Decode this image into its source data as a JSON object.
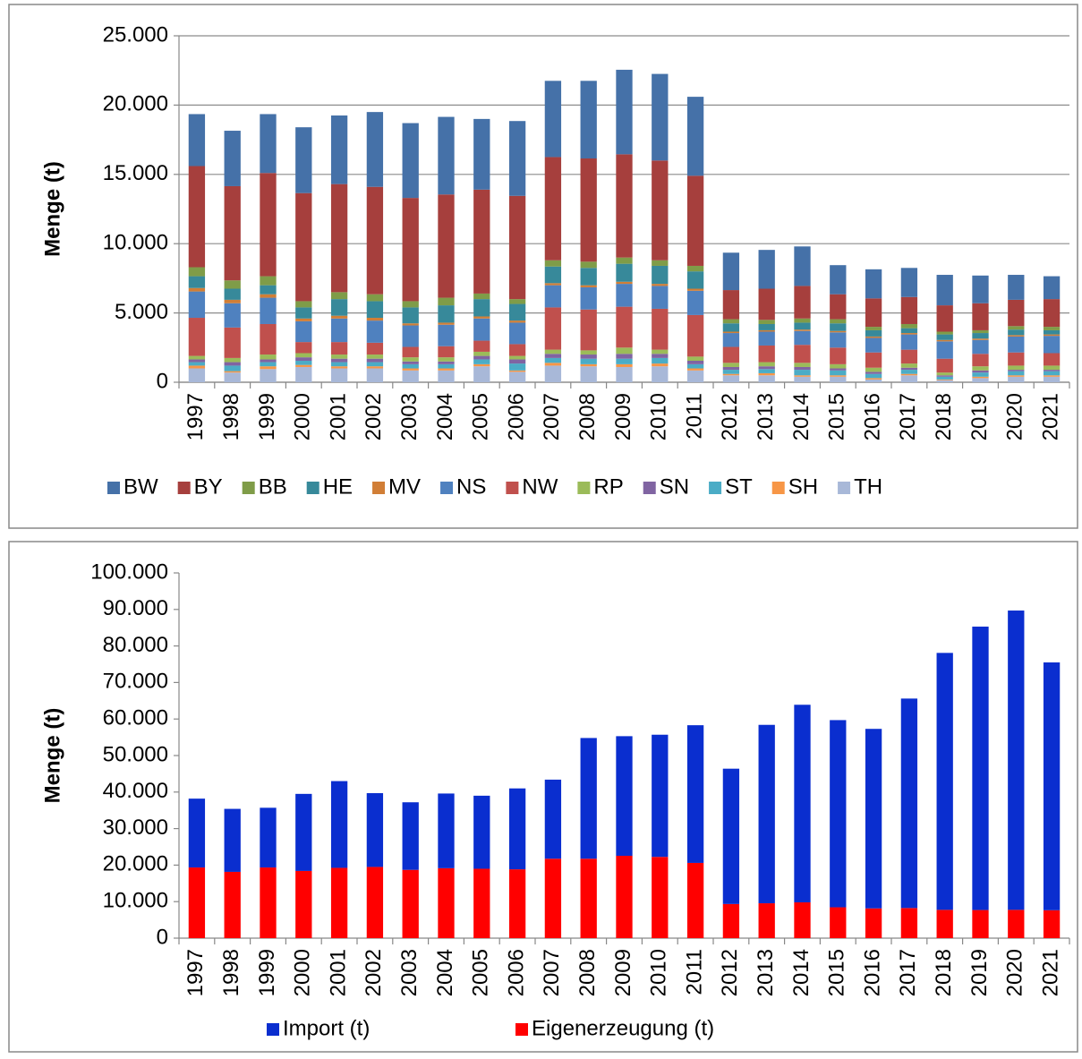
{
  "chart_data": [
    {
      "type": "stacked-bar",
      "y_label": "Menge (t)",
      "categories": [
        "1997",
        "1998",
        "1999",
        "2000",
        "2001",
        "2002",
        "2003",
        "2004",
        "2005",
        "2006",
        "2007",
        "2008",
        "2009",
        "2010",
        "2011",
        "2012",
        "2013",
        "2014",
        "2015",
        "2016",
        "2017",
        "2018",
        "2019",
        "2020",
        "2021"
      ],
      "ylim": [
        0,
        25000
      ],
      "yticks": [
        0,
        {
          "value": 5000,
          "label": "5.000"
        },
        {
          "value": 10000,
          "label": "10.000"
        },
        {
          "value": 15000,
          "label": "15.000"
        },
        {
          "value": 20000,
          "label": "20.000"
        },
        {
          "value": 25000,
          "label": "25.000"
        }
      ],
      "grid": true,
      "legend": "bottom",
      "series": [
        {
          "name": "BW",
          "color": "#4571a8",
          "values": [
            3750,
            4000,
            4250,
            4750,
            4950,
            5400,
            5400,
            5600,
            5100,
            5400,
            5500,
            5600,
            6100,
            6250,
            5700,
            2700,
            2800,
            2850,
            2100,
            2100,
            2100,
            2200,
            2000,
            1800,
            1650
          ]
        },
        {
          "name": "BY",
          "color": "#a63f3d",
          "values": [
            7300,
            6800,
            7450,
            7800,
            7800,
            7750,
            7450,
            7450,
            7500,
            7450,
            7450,
            7450,
            7450,
            7200,
            6500,
            2100,
            2250,
            2350,
            1800,
            2050,
            1950,
            1900,
            1950,
            1900,
            2000
          ]
        },
        {
          "name": "BB",
          "color": "#7f9c48",
          "values": [
            650,
            600,
            650,
            450,
            500,
            500,
            450,
            550,
            400,
            350,
            450,
            450,
            450,
            400,
            400,
            300,
            300,
            300,
            300,
            250,
            300,
            200,
            200,
            250,
            250
          ]
        },
        {
          "name": "HE",
          "color": "#37899a",
          "values": [
            850,
            800,
            650,
            800,
            1200,
            1200,
            1150,
            1250,
            1250,
            1200,
            1200,
            1250,
            1300,
            1300,
            1250,
            600,
            450,
            500,
            550,
            450,
            350,
            400,
            400,
            400,
            300
          ]
        },
        {
          "name": "MV",
          "color": "#d17e36",
          "values": [
            250,
            250,
            250,
            200,
            200,
            200,
            150,
            150,
            150,
            150,
            150,
            150,
            150,
            150,
            150,
            100,
            100,
            100,
            100,
            100,
            100,
            100,
            100,
            100,
            100
          ]
        },
        {
          "name": "NS",
          "color": "#4f81bf",
          "values": [
            1900,
            1750,
            1900,
            1500,
            1700,
            1600,
            1550,
            1550,
            1600,
            1550,
            1600,
            1600,
            1650,
            1650,
            1750,
            1000,
            1000,
            1000,
            1100,
            1050,
            1100,
            1250,
            1000,
            1150,
            1250
          ]
        },
        {
          "name": "NW",
          "color": "#c0504d",
          "values": [
            2750,
            2200,
            2200,
            800,
            900,
            850,
            750,
            800,
            800,
            850,
            3050,
            2950,
            2950,
            2950,
            3000,
            1150,
            1200,
            1300,
            1200,
            1100,
            1000,
            1000,
            900,
            950,
            900
          ]
        },
        {
          "name": "RP",
          "color": "#9bbb59",
          "values": [
            250,
            300,
            350,
            300,
            300,
            300,
            300,
            300,
            300,
            250,
            300,
            300,
            450,
            300,
            300,
            300,
            300,
            300,
            300,
            300,
            300,
            200,
            300,
            300,
            300
          ]
        },
        {
          "name": "SN",
          "color": "#8064a2",
          "values": [
            200,
            250,
            200,
            250,
            250,
            250,
            200,
            200,
            250,
            300,
            300,
            300,
            350,
            300,
            250,
            200,
            200,
            200,
            150,
            150,
            150,
            100,
            150,
            100,
            100
          ]
        },
        {
          "name": "ST",
          "color": "#4bacc6",
          "values": [
            250,
            400,
            300,
            300,
            300,
            300,
            300,
            300,
            350,
            500,
            350,
            400,
            400,
            400,
            300,
            300,
            300,
            400,
            350,
            300,
            300,
            200,
            300,
            300,
            300
          ]
        },
        {
          "name": "SH",
          "color": "#f79646",
          "values": [
            200,
            100,
            200,
            150,
            150,
            150,
            150,
            150,
            150,
            100,
            200,
            150,
            200,
            200,
            150,
            100,
            150,
            100,
            100,
            100,
            100,
            50,
            100,
            100,
            100
          ]
        },
        {
          "name": "TH",
          "color": "#a8b8d8",
          "values": [
            1000,
            700,
            950,
            1100,
            1000,
            1000,
            850,
            850,
            1150,
            750,
            1200,
            1150,
            1100,
            1150,
            850,
            500,
            500,
            400,
            400,
            200,
            500,
            150,
            300,
            400,
            400
          ]
        }
      ]
    },
    {
      "type": "stacked-bar",
      "y_label": "Menge (t)",
      "categories": [
        "1997",
        "1998",
        "1999",
        "2000",
        "2001",
        "2002",
        "2003",
        "2004",
        "2005",
        "2006",
        "2007",
        "2008",
        "2009",
        "2010",
        "2011",
        "2012",
        "2013",
        "2014",
        "2015",
        "2016",
        "2017",
        "2018",
        "2019",
        "2020",
        "2021"
      ],
      "ylim": [
        0,
        100000
      ],
      "yticks": [
        0,
        {
          "value": 10000,
          "label": "10.000"
        },
        {
          "value": 20000,
          "label": "20.000"
        },
        {
          "value": 30000,
          "label": "30.000"
        },
        {
          "value": 40000,
          "label": "40.000"
        },
        {
          "value": 50000,
          "label": "50.000"
        },
        {
          "value": 60000,
          "label": "60.000"
        },
        {
          "value": 70000,
          "label": "70.000"
        },
        {
          "value": 80000,
          "label": "80.000"
        },
        {
          "value": 90000,
          "label": "90.000"
        },
        {
          "value": 100000,
          "label": "100.000"
        }
      ],
      "grid": false,
      "legend": "bottom",
      "series": [
        {
          "name": "Import (t)",
          "color": "#0a2ecf",
          "values": [
            18850,
            17250,
            16350,
            21100,
            23750,
            20200,
            18500,
            20450,
            20000,
            22150,
            21650,
            33050,
            32750,
            33450,
            37700,
            37050,
            48850,
            54100,
            51250,
            49150,
            57350,
            70350,
            77600,
            81950,
            67850
          ]
        },
        {
          "name": "Eigenerzeugung (t)",
          "color": "#ff0000",
          "values": [
            19350,
            18150,
            19350,
            18400,
            19250,
            19500,
            18700,
            19150,
            19000,
            18850,
            21750,
            21750,
            22550,
            22250,
            20600,
            9350,
            9550,
            9800,
            8450,
            8150,
            8250,
            7750,
            7700,
            7750,
            7650
          ]
        }
      ]
    }
  ]
}
